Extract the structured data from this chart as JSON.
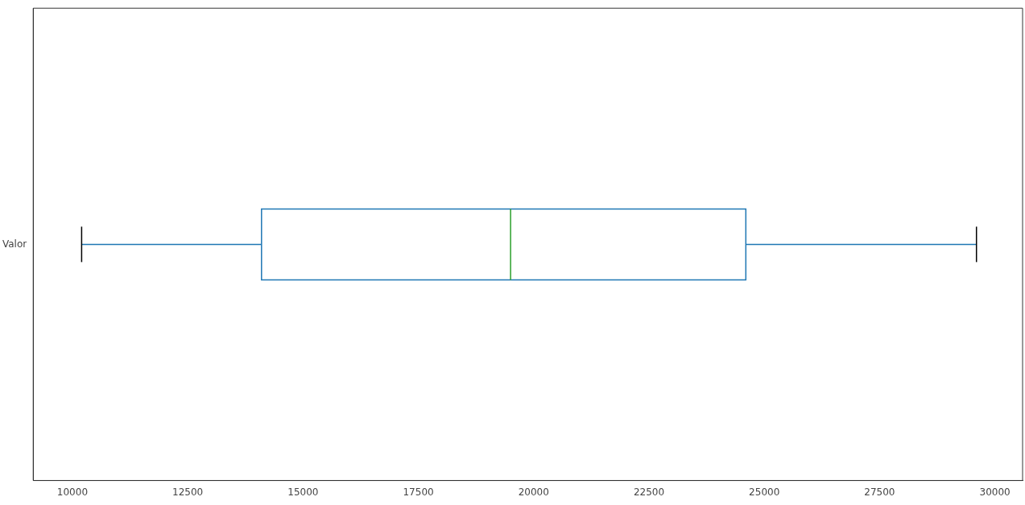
{
  "chart_data": {
    "type": "box",
    "orientation": "horizontal",
    "categories": [
      "Valor"
    ],
    "series": [
      {
        "color": "#1f77b4",
        "boxes": [
          {
            "low": 10200,
            "q1": 14100,
            "median": 19500,
            "q3": 24600,
            "high": 29600
          }
        ]
      }
    ],
    "xlim": [
      9150,
      30600
    ],
    "xticks": [
      10000,
      12500,
      15000,
      17500,
      20000,
      22500,
      25000,
      27500,
      30000
    ],
    "grid": false,
    "legend": false
  }
}
